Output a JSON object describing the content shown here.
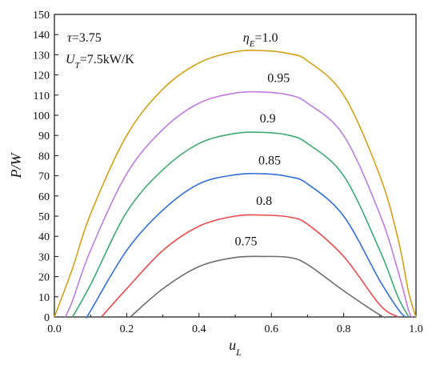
{
  "chart_data": {
    "type": "line",
    "xlabel": "u_L",
    "ylabel": "P/W",
    "xlim": [
      0.0,
      1.0
    ],
    "ylim": [
      0,
      150
    ],
    "xticks": [
      0.0,
      0.2,
      0.4,
      0.6,
      0.8,
      1.0
    ],
    "xtick_labels": [
      "0.0",
      "0.2",
      "0.4",
      "0.6",
      "0.8",
      "1.0"
    ],
    "yticks": [
      0,
      10,
      20,
      30,
      40,
      50,
      60,
      70,
      80,
      90,
      100,
      110,
      120,
      130,
      140,
      150
    ],
    "ytick_labels": [
      "0",
      "10",
      "20",
      "30",
      "40",
      "50",
      "60",
      "70",
      "80",
      "90",
      "100",
      "110",
      "120",
      "130",
      "140",
      "150"
    ],
    "grid": false,
    "legend": "none",
    "annotations": [
      {
        "text": "τ=3.75"
      },
      {
        "text": "U_T=7.5kW/K"
      }
    ],
    "series": [
      {
        "name": "η_E=1.0",
        "color": "#D4A017",
        "x": [
          0.0,
          0.05,
          0.1,
          0.2,
          0.3,
          0.4,
          0.5,
          0.58,
          0.65,
          0.7,
          0.8,
          0.9,
          0.95,
          0.98,
          1.0
        ],
        "values": [
          0,
          24,
          51,
          90,
          113,
          126,
          131.5,
          132,
          130.5,
          127,
          110,
          70,
          39,
          12,
          0
        ]
      },
      {
        "name": "0.95",
        "color": "#C07BE0",
        "x": [
          0.03,
          0.05,
          0.1,
          0.2,
          0.3,
          0.4,
          0.5,
          0.58,
          0.65,
          0.7,
          0.8,
          0.9,
          0.95,
          0.98,
          0.99
        ],
        "values": [
          0,
          8,
          33,
          71,
          93,
          106,
          111,
          111.5,
          110,
          106,
          90,
          51,
          23,
          3,
          0
        ]
      },
      {
        "name": "0.9",
        "color": "#3DAA72",
        "x": [
          0.05,
          0.1,
          0.2,
          0.3,
          0.4,
          0.5,
          0.58,
          0.65,
          0.7,
          0.8,
          0.9,
          0.95,
          0.98
        ],
        "values": [
          0,
          16,
          52,
          73,
          86,
          91,
          91.5,
          90,
          86,
          70,
          33,
          10,
          0
        ]
      },
      {
        "name": "0.85",
        "color": "#2F6FD6",
        "x": [
          0.09,
          0.1,
          0.2,
          0.3,
          0.4,
          0.5,
          0.58,
          0.65,
          0.7,
          0.8,
          0.9,
          0.95,
          0.97
        ],
        "values": [
          0,
          3,
          33,
          53,
          66,
          70.5,
          71,
          69.5,
          66,
          50,
          18,
          4,
          0
        ]
      },
      {
        "name": "0.8",
        "color": "#E84B4B",
        "x": [
          0.13,
          0.2,
          0.3,
          0.4,
          0.5,
          0.58,
          0.65,
          0.7,
          0.8,
          0.9,
          0.95
        ],
        "values": [
          0,
          14,
          33,
          45,
          50,
          50.5,
          49.5,
          46,
          30,
          6,
          0
        ]
      },
      {
        "name": "0.75",
        "color": "#6E6E6E",
        "x": [
          0.21,
          0.3,
          0.4,
          0.5,
          0.58,
          0.65,
          0.7,
          0.8,
          0.9,
          0.92
        ],
        "values": [
          0,
          14,
          25,
          29.5,
          30,
          29.5,
          26,
          13,
          1,
          0
        ]
      }
    ],
    "series_labels": [
      {
        "text": "η_E=1.0",
        "x": 0.57,
        "y": 136.5
      },
      {
        "text": "0.95",
        "x": 0.62,
        "y": 116.5
      },
      {
        "text": "0.9",
        "x": 0.59,
        "y": 96.5
      },
      {
        "text": "0.85",
        "x": 0.595,
        "y": 75.5
      },
      {
        "text": "0.8",
        "x": 0.58,
        "y": 55.5
      },
      {
        "text": "0.75",
        "x": 0.53,
        "y": 35.5
      }
    ]
  }
}
